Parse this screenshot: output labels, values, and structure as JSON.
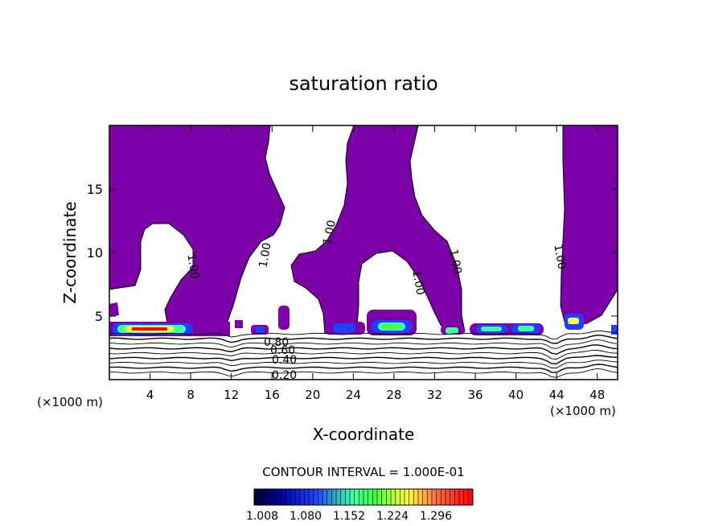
{
  "chart_data": {
    "type": "heatmap",
    "title": "saturation ratio",
    "xlabel": "X-coordinate",
    "ylabel": "Z-coordinate",
    "x_unit": "(×1000 m)",
    "x_unit_right": "(×1000 m)",
    "xlim": [
      0,
      50
    ],
    "ylim": [
      0,
      20
    ],
    "x_ticks": [
      4,
      8,
      12,
      16,
      20,
      24,
      28,
      32,
      36,
      40,
      44,
      48
    ],
    "y_ticks": [
      5,
      10,
      15
    ],
    "contour_interval_label": "CONTOUR INTERVAL = 1.000E-01",
    "colorbar": {
      "min": 1.008,
      "max": 1.35,
      "tick_labels": [
        "1.008",
        "1.080",
        "1.152",
        "1.224",
        "1.296"
      ],
      "colors": [
        "#000030",
        "#0000a0",
        "#2040ff",
        "#40ffa0",
        "#40ff40",
        "#ffff40",
        "#ff6040",
        "#ff0000"
      ]
    },
    "supersaturated_fill_color": "#7b00a8",
    "contour_labels": [
      "1.00",
      "1.00",
      "1.00",
      "1.00",
      "1.00",
      "0.80",
      "0.60",
      "0.40",
      "0.20"
    ],
    "lower_contour_levels": [
      0.1,
      0.2,
      0.3,
      0.4,
      0.5,
      0.6,
      0.7,
      0.8,
      0.9
    ]
  }
}
